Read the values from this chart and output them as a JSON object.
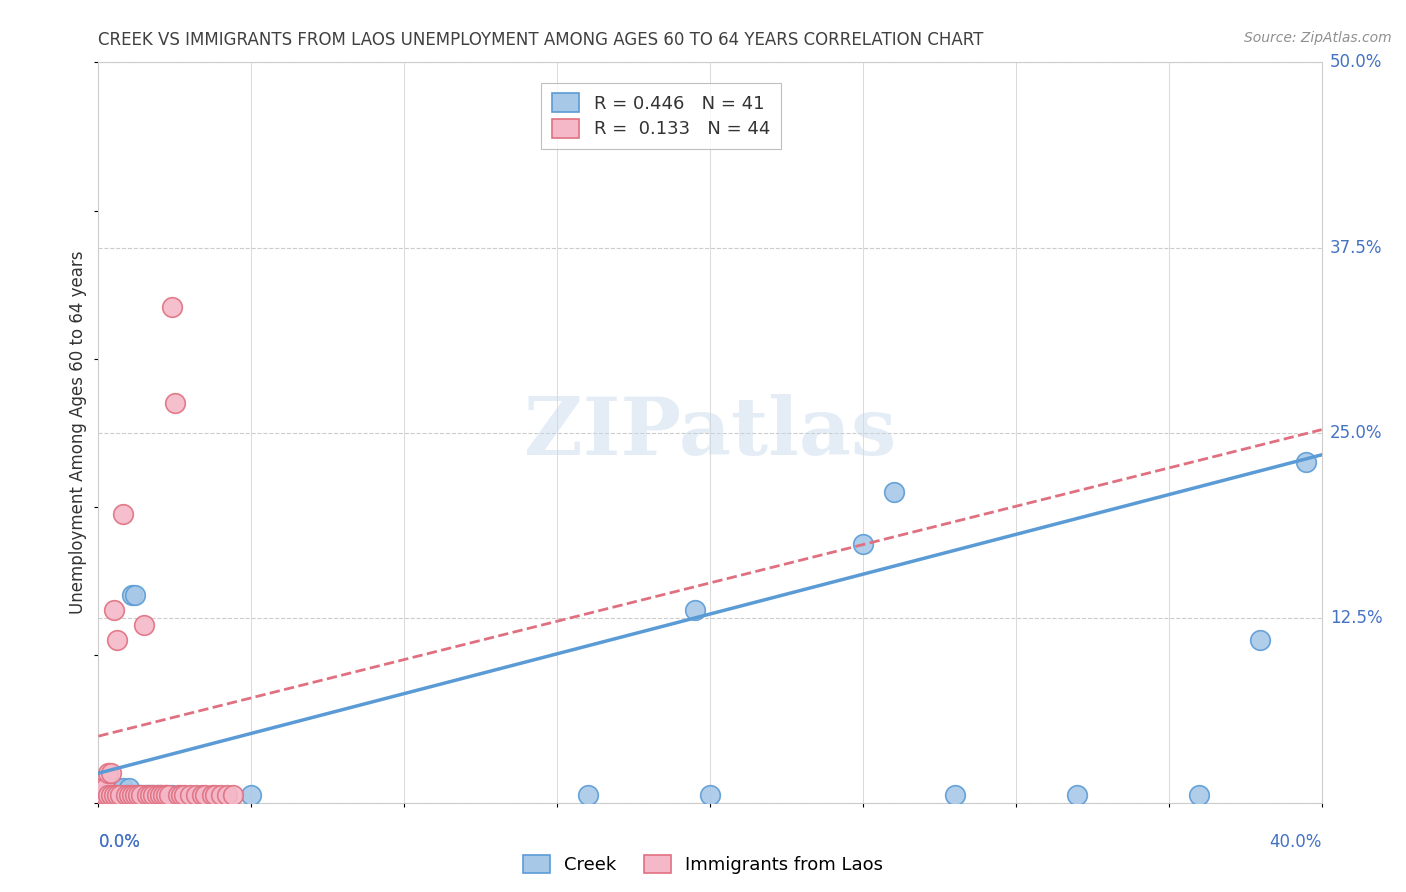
{
  "title": "CREEK VS IMMIGRANTS FROM LAOS UNEMPLOYMENT AMONG AGES 60 TO 64 YEARS CORRELATION CHART",
  "source": "Source: ZipAtlas.com",
  "ylabel": "Unemployment Among Ages 60 to 64 years",
  "ytick_values": [
    0.0,
    0.125,
    0.25,
    0.375,
    0.5
  ],
  "ytick_labels": [
    "",
    "12.5%",
    "25.0%",
    "37.5%",
    "50.0%"
  ],
  "xlim": [
    0.0,
    0.4
  ],
  "ylim": [
    0.0,
    0.5
  ],
  "watermark_line1": "ZIP",
  "watermark_line2": "atlas",
  "legend_creek_R": "0.446",
  "legend_creek_N": "41",
  "legend_laos_R": "0.133",
  "legend_laos_N": "44",
  "creek_face": "#a8c8e8",
  "creek_edge": "#5b9bd5",
  "laos_face": "#f4b8c8",
  "laos_edge": "#e07080",
  "title_color": "#404040",
  "source_color": "#909090",
  "axis_label_color": "#4472c4",
  "grid_color": "#cccccc",
  "creek_points_x": [
    0.001,
    0.002,
    0.002,
    0.003,
    0.003,
    0.004,
    0.004,
    0.005,
    0.005,
    0.006,
    0.006,
    0.007,
    0.007,
    0.008,
    0.008,
    0.009,
    0.01,
    0.01,
    0.011,
    0.012,
    0.013,
    0.014,
    0.015,
    0.016,
    0.017,
    0.018,
    0.019,
    0.02,
    0.022,
    0.024,
    0.05,
    0.16,
    0.2,
    0.28,
    0.32,
    0.36,
    0.38,
    0.395,
    0.25,
    0.26,
    0.195
  ],
  "creek_points_y": [
    0.005,
    0.005,
    0.008,
    0.005,
    0.01,
    0.005,
    0.008,
    0.005,
    0.01,
    0.005,
    0.01,
    0.005,
    0.008,
    0.005,
    0.01,
    0.005,
    0.005,
    0.01,
    0.14,
    0.14,
    0.005,
    0.005,
    0.005,
    0.005,
    0.005,
    0.005,
    0.005,
    0.005,
    0.005,
    0.005,
    0.005,
    0.005,
    0.005,
    0.005,
    0.005,
    0.005,
    0.11,
    0.23,
    0.175,
    0.21,
    0.13
  ],
  "laos_points_x": [
    0.0,
    0.001,
    0.001,
    0.002,
    0.002,
    0.003,
    0.003,
    0.004,
    0.004,
    0.005,
    0.005,
    0.006,
    0.006,
    0.007,
    0.008,
    0.009,
    0.01,
    0.011,
    0.012,
    0.013,
    0.014,
    0.015,
    0.016,
    0.017,
    0.018,
    0.019,
    0.02,
    0.021,
    0.022,
    0.023,
    0.024,
    0.025,
    0.026,
    0.027,
    0.028,
    0.03,
    0.032,
    0.034,
    0.035,
    0.037,
    0.038,
    0.04,
    0.042,
    0.044
  ],
  "laos_points_y": [
    0.005,
    0.005,
    0.01,
    0.005,
    0.01,
    0.005,
    0.02,
    0.005,
    0.02,
    0.005,
    0.13,
    0.005,
    0.11,
    0.005,
    0.195,
    0.005,
    0.005,
    0.005,
    0.005,
    0.005,
    0.005,
    0.12,
    0.005,
    0.005,
    0.005,
    0.005,
    0.005,
    0.005,
    0.005,
    0.005,
    0.335,
    0.27,
    0.005,
    0.005,
    0.005,
    0.005,
    0.005,
    0.005,
    0.005,
    0.005,
    0.005,
    0.005,
    0.005,
    0.005
  ],
  "creek_trend_x": [
    0.0,
    0.4
  ],
  "creek_trend_y": [
    0.02,
    0.235
  ],
  "laos_trend_x": [
    0.0,
    0.4
  ],
  "laos_trend_y": [
    0.045,
    0.252
  ]
}
